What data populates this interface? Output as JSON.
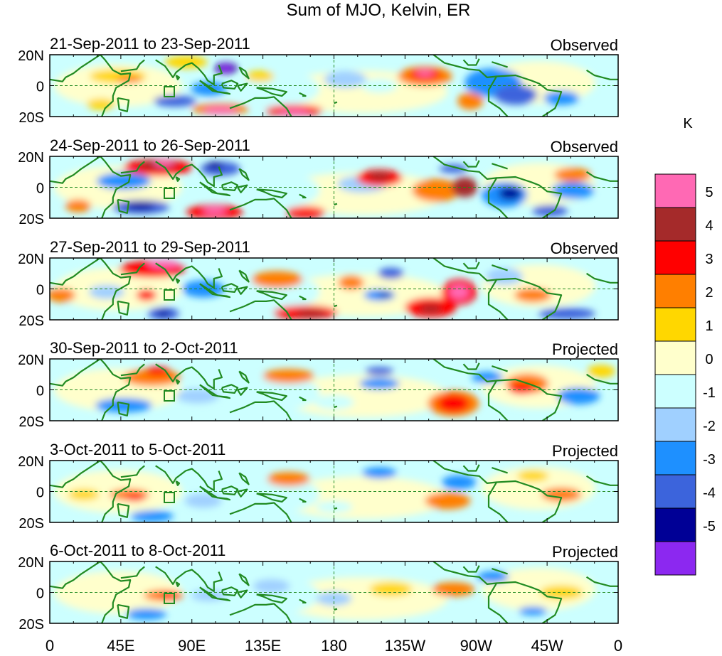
{
  "title": "Sum of MJO, Kelvin, ER",
  "x_ticks": [
    "0",
    "45E",
    "90E",
    "135E",
    "180",
    "135W",
    "90W",
    "45W",
    "0"
  ],
  "y_ticks": [
    "20N",
    "0",
    "20S"
  ],
  "panels": [
    {
      "date_range": "21-Sep-2011 to 23-Sep-2011",
      "status": "Observed"
    },
    {
      "date_range": "24-Sep-2011 to 26-Sep-2011",
      "status": "Observed"
    },
    {
      "date_range": "27-Sep-2011 to 29-Sep-2011",
      "status": "Observed"
    },
    {
      "date_range": "30-Sep-2011 to 2-Oct-2011",
      "status": "Projected"
    },
    {
      "date_range": "3-Oct-2011 to 5-Oct-2011",
      "status": "Projected"
    },
    {
      "date_range": "6-Oct-2011 to 8-Oct-2011",
      "status": "Projected"
    }
  ],
  "colorbar": {
    "unit": "K",
    "tick_labels": [
      "5",
      "4",
      "3",
      "2",
      "1",
      "0",
      "-1",
      "-2",
      "-3",
      "-4",
      "-5"
    ],
    "colors": [
      "#ff69b4",
      "#a52a2a",
      "#ff0000",
      "#ff7f00",
      "#ffd700",
      "#ffffcc",
      "#ccffff",
      "#a0d0ff",
      "#1e90ff",
      "#3c64dc",
      "#000096",
      "#8c28f0"
    ]
  },
  "map_colors": {
    "coastline": "#228b22",
    "guide_line": "#228b22"
  }
}
